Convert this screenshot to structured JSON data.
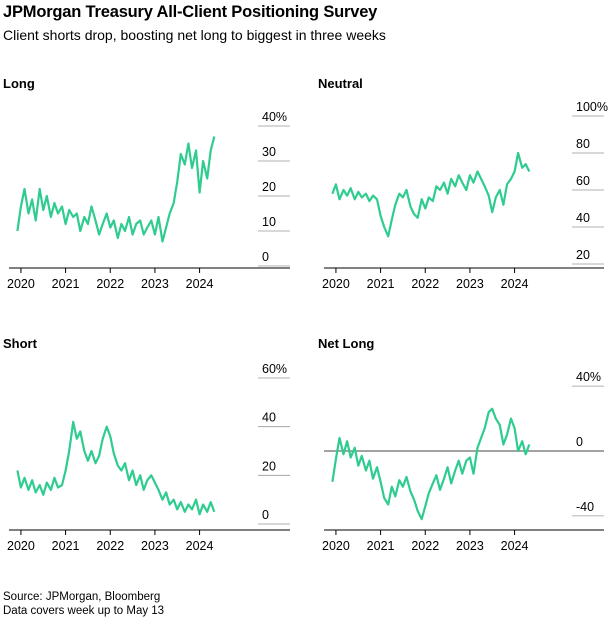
{
  "header": {
    "title": "JPMorgan Treasury All-Client Positioning Survey",
    "subtitle": "Client shorts drop, boosting net long to biggest in three weeks"
  },
  "footer": {
    "source": "Source: JPMorgan, Bloomberg",
    "note": "Data covers week up to May 13"
  },
  "colors": {
    "line": "#2ecc8f",
    "axis": "#000000",
    "zero_line": "#444444"
  },
  "chart_data": [
    {
      "type": "line",
      "title": "Long",
      "xlabel": "",
      "ylabel": "",
      "x_ticks": [
        "2020",
        "2021",
        "2022",
        "2023",
        "2024"
      ],
      "y_ticks": [
        "0",
        "10",
        "20",
        "30",
        "40%"
      ],
      "ylim": [
        0,
        40
      ],
      "xlim": [
        2019.8,
        2024.95
      ],
      "x": [
        2019.92,
        2020.0,
        2020.08,
        2020.17,
        2020.25,
        2020.33,
        2020.42,
        2020.5,
        2020.58,
        2020.67,
        2020.75,
        2020.83,
        2020.92,
        2021.0,
        2021.08,
        2021.17,
        2021.25,
        2021.33,
        2021.42,
        2021.5,
        2021.58,
        2021.67,
        2021.75,
        2021.83,
        2021.92,
        2022.0,
        2022.08,
        2022.17,
        2022.25,
        2022.33,
        2022.42,
        2022.5,
        2022.58,
        2022.67,
        2022.75,
        2022.83,
        2022.92,
        2023.0,
        2023.08,
        2023.17,
        2023.25,
        2023.33,
        2023.42,
        2023.5,
        2023.58,
        2023.67,
        2023.75,
        2023.83,
        2023.92,
        2024.0,
        2024.08,
        2024.17,
        2024.25,
        2024.33
      ],
      "series": [
        {
          "name": "",
          "values": [
            10,
            17,
            22,
            15,
            19,
            13,
            22,
            16,
            20,
            14,
            18,
            15,
            17,
            12,
            16,
            14,
            15,
            10,
            14,
            12,
            17,
            13,
            9,
            12,
            15,
            11,
            13,
            8,
            12,
            10,
            14,
            9,
            12,
            13,
            9,
            11,
            13,
            9,
            14,
            7,
            11,
            15,
            18,
            24,
            32,
            29,
            35,
            28,
            33,
            21,
            30,
            25,
            33,
            37
          ]
        }
      ]
    },
    {
      "type": "line",
      "title": "Neutral",
      "xlabel": "",
      "ylabel": "",
      "x_ticks": [
        "2020",
        "2021",
        "2022",
        "2023",
        "2024"
      ],
      "y_ticks": [
        "20",
        "40",
        "60",
        "80",
        "100%"
      ],
      "ylim": [
        20,
        100
      ],
      "xlim": [
        2019.8,
        2024.95
      ],
      "x": [
        2019.92,
        2020.0,
        2020.08,
        2020.17,
        2020.25,
        2020.33,
        2020.42,
        2020.5,
        2020.58,
        2020.67,
        2020.75,
        2020.83,
        2020.92,
        2021.0,
        2021.08,
        2021.17,
        2021.25,
        2021.33,
        2021.42,
        2021.5,
        2021.58,
        2021.67,
        2021.75,
        2021.83,
        2021.92,
        2022.0,
        2022.08,
        2022.17,
        2022.25,
        2022.33,
        2022.42,
        2022.5,
        2022.58,
        2022.67,
        2022.75,
        2022.83,
        2022.92,
        2023.0,
        2023.08,
        2023.17,
        2023.25,
        2023.33,
        2023.42,
        2023.5,
        2023.58,
        2023.67,
        2023.75,
        2023.83,
        2023.92,
        2024.0,
        2024.08,
        2024.17,
        2024.25,
        2024.33
      ],
      "series": [
        {
          "name": "",
          "values": [
            58,
            63,
            55,
            60,
            57,
            61,
            55,
            59,
            56,
            58,
            54,
            57,
            55,
            46,
            40,
            35,
            44,
            52,
            58,
            56,
            60,
            51,
            47,
            45,
            55,
            50,
            56,
            54,
            62,
            60,
            64,
            58,
            66,
            62,
            68,
            64,
            60,
            68,
            64,
            70,
            66,
            62,
            57,
            48,
            56,
            60,
            52,
            63,
            66,
            70,
            80,
            72,
            74,
            70
          ]
        }
      ]
    },
    {
      "type": "line",
      "title": "Short",
      "xlabel": "",
      "ylabel": "",
      "x_ticks": [
        "2020",
        "2021",
        "2022",
        "2023",
        "2024"
      ],
      "y_ticks": [
        "0",
        "20",
        "40",
        "60%"
      ],
      "ylim": [
        0,
        60
      ],
      "xlim": [
        2019.8,
        2024.95
      ],
      "x": [
        2019.92,
        2020.0,
        2020.08,
        2020.17,
        2020.25,
        2020.33,
        2020.42,
        2020.5,
        2020.58,
        2020.67,
        2020.75,
        2020.83,
        2020.92,
        2021.0,
        2021.08,
        2021.17,
        2021.25,
        2021.33,
        2021.42,
        2021.5,
        2021.58,
        2021.67,
        2021.75,
        2021.83,
        2021.92,
        2022.0,
        2022.08,
        2022.17,
        2022.25,
        2022.33,
        2022.42,
        2022.5,
        2022.58,
        2022.67,
        2022.75,
        2022.83,
        2022.92,
        2023.0,
        2023.08,
        2023.17,
        2023.25,
        2023.33,
        2023.42,
        2023.5,
        2023.58,
        2023.67,
        2023.75,
        2023.83,
        2023.92,
        2024.0,
        2024.08,
        2024.17,
        2024.25,
        2024.33
      ],
      "series": [
        {
          "name": "",
          "values": [
            22,
            15,
            19,
            14,
            18,
            13,
            16,
            12,
            17,
            14,
            19,
            15,
            16,
            22,
            30,
            42,
            35,
            38,
            30,
            26,
            30,
            25,
            28,
            35,
            40,
            36,
            29,
            24,
            22,
            25,
            18,
            22,
            16,
            20,
            14,
            18,
            20,
            17,
            14,
            10,
            13,
            8,
            10,
            6,
            9,
            5,
            8,
            6,
            10,
            4,
            8,
            5,
            9,
            5
          ]
        }
      ]
    },
    {
      "type": "line",
      "title": "Net Long",
      "xlabel": "",
      "ylabel": "",
      "x_ticks": [
        "2020",
        "2021",
        "2022",
        "2023",
        "2024"
      ],
      "y_ticks": [
        "-40",
        "0",
        "40%"
      ],
      "ylim": [
        -45,
        45
      ],
      "zero_line": 0,
      "xlim": [
        2019.8,
        2024.95
      ],
      "x": [
        2019.92,
        2020.0,
        2020.08,
        2020.17,
        2020.25,
        2020.33,
        2020.42,
        2020.5,
        2020.58,
        2020.67,
        2020.75,
        2020.83,
        2020.92,
        2021.0,
        2021.08,
        2021.17,
        2021.25,
        2021.33,
        2021.42,
        2021.5,
        2021.58,
        2021.67,
        2021.75,
        2021.83,
        2021.92,
        2022.0,
        2022.08,
        2022.17,
        2022.25,
        2022.33,
        2022.42,
        2022.5,
        2022.58,
        2022.67,
        2022.75,
        2022.83,
        2022.92,
        2023.0,
        2023.08,
        2023.17,
        2023.25,
        2023.33,
        2023.42,
        2023.5,
        2023.58,
        2023.67,
        2023.75,
        2023.83,
        2023.92,
        2024.0,
        2024.08,
        2024.17,
        2024.25,
        2024.33
      ],
      "series": [
        {
          "name": "",
          "values": [
            -19,
            -5,
            8,
            -2,
            6,
            -4,
            2,
            -9,
            -3,
            -12,
            -6,
            -17,
            -10,
            -19,
            -29,
            -33,
            -22,
            -28,
            -18,
            -22,
            -16,
            -25,
            -30,
            -37,
            -42,
            -34,
            -26,
            -20,
            -15,
            -24,
            -17,
            -10,
            -20,
            -12,
            -6,
            -14,
            -6,
            -4,
            -14,
            2,
            8,
            14,
            24,
            26,
            20,
            16,
            4,
            10,
            20,
            14,
            0,
            6,
            -2,
            4
          ]
        }
      ]
    }
  ]
}
